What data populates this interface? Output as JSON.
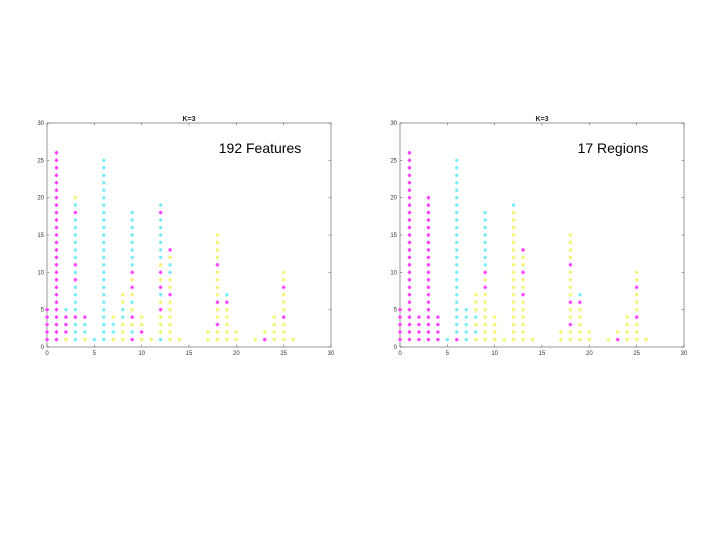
{
  "colors": {
    "magenta": "#ff33ff",
    "cyan": "#6fe9f5",
    "yellow": "#f3f36a",
    "axis": "#555555"
  },
  "chart_data": [
    {
      "type": "scatter",
      "title": "K=3",
      "annotation": "192 Features",
      "xlim": [
        0,
        30
      ],
      "ylim": [
        0,
        30
      ],
      "xticks": [
        "0",
        "5",
        "10",
        "15",
        "20",
        "25",
        "30"
      ],
      "yticks": [
        "0",
        "5",
        "10",
        "15",
        "20",
        "25",
        "30"
      ],
      "marker": "asterisk",
      "grid": false,
      "columns": [
        {
          "x": 0,
          "magenta": [
            1,
            2,
            3,
            4,
            5
          ]
        },
        {
          "x": 1,
          "magenta": [
            1,
            2,
            3,
            4,
            5,
            6,
            7,
            8,
            9,
            10,
            11,
            12,
            13,
            14,
            15,
            16,
            17,
            18,
            19,
            20,
            21,
            22,
            23,
            24,
            25,
            26
          ],
          "cyan": [],
          "yellow": []
        },
        {
          "x": 2,
          "magenta": [
            2,
            3,
            4
          ],
          "cyan": [
            5
          ],
          "yellow": [
            1
          ]
        },
        {
          "x": 3,
          "magenta": [
            4,
            9,
            11,
            18
          ],
          "cyan": [
            1,
            2,
            3,
            5,
            6,
            7,
            8,
            10,
            12,
            13,
            14,
            15,
            16,
            17,
            19
          ],
          "yellow": [
            20
          ]
        },
        {
          "x": 4,
          "magenta": [
            4
          ],
          "cyan": [
            2,
            3
          ],
          "yellow": [
            1
          ]
        },
        {
          "x": 5,
          "cyan": [
            1
          ],
          "yellow": []
        },
        {
          "x": 6,
          "cyan": [
            1,
            2,
            3,
            4,
            5,
            6,
            7,
            8,
            9,
            10,
            11,
            12,
            13,
            14,
            15,
            16,
            17,
            18,
            19,
            20,
            21,
            22,
            23,
            24,
            25
          ],
          "yellow": []
        },
        {
          "x": 7,
          "cyan": [
            2,
            3
          ],
          "yellow": [
            1,
            4
          ]
        },
        {
          "x": 8,
          "cyan": [
            4,
            5
          ],
          "yellow": [
            1,
            2,
            3,
            6,
            7
          ]
        },
        {
          "x": 9,
          "magenta": [
            1,
            4,
            8,
            10
          ],
          "cyan": [
            2,
            6,
            11,
            12,
            13,
            14,
            15,
            16,
            17,
            18
          ],
          "yellow": [
            3,
            5,
            7,
            9
          ]
        },
        {
          "x": 10,
          "magenta": [
            2
          ],
          "yellow": [
            1,
            3,
            4
          ]
        },
        {
          "x": 11,
          "yellow": [
            1
          ]
        },
        {
          "x": 12,
          "magenta": [
            5,
            8,
            10,
            18
          ],
          "cyan": [
            1,
            7,
            12,
            13,
            14,
            15,
            16,
            17,
            19
          ],
          "yellow": [
            2,
            3,
            4,
            6,
            9,
            11
          ]
        },
        {
          "x": 13,
          "magenta": [
            7,
            13
          ],
          "cyan": [
            10,
            11
          ],
          "yellow": [
            1,
            2,
            3,
            4,
            5,
            6,
            8,
            9,
            12
          ]
        },
        {
          "x": 14,
          "yellow": [
            1
          ]
        },
        {
          "x": 17,
          "yellow": [
            1,
            2
          ]
        },
        {
          "x": 18,
          "magenta": [
            3,
            6,
            11
          ],
          "yellow": [
            1,
            2,
            4,
            5,
            7,
            8,
            9,
            10,
            12,
            13,
            14,
            15
          ]
        },
        {
          "x": 19,
          "magenta": [
            6
          ],
          "cyan": [
            7
          ],
          "yellow": [
            1,
            2,
            3,
            4,
            5
          ]
        },
        {
          "x": 20,
          "yellow": [
            1,
            2
          ]
        },
        {
          "x": 22,
          "yellow": [
            1
          ]
        },
        {
          "x": 23,
          "magenta": [
            1
          ],
          "yellow": [
            2
          ]
        },
        {
          "x": 24,
          "yellow": [
            1,
            2,
            3,
            4
          ]
        },
        {
          "x": 25,
          "magenta": [
            4,
            8
          ],
          "yellow": [
            1,
            2,
            3,
            5,
            6,
            7,
            9,
            10
          ]
        },
        {
          "x": 26,
          "yellow": [
            1
          ]
        }
      ]
    },
    {
      "type": "scatter",
      "title": "K=3",
      "annotation": "17 Regions",
      "xlim": [
        0,
        30
      ],
      "ylim": [
        0,
        30
      ],
      "xticks": [
        "0",
        "5",
        "10",
        "15",
        "20",
        "25",
        "30"
      ],
      "yticks": [
        "0",
        "5",
        "10",
        "15",
        "20",
        "25",
        "30"
      ],
      "marker": "asterisk",
      "grid": false,
      "columns": [
        {
          "x": 0,
          "magenta": [
            1,
            2,
            3,
            4,
            5
          ]
        },
        {
          "x": 1,
          "magenta": [
            1,
            2,
            3,
            4,
            5,
            6,
            7,
            8,
            9,
            10,
            11,
            12,
            13,
            14,
            15,
            16,
            17,
            18,
            19,
            20,
            21,
            22,
            23,
            24,
            25,
            26
          ]
        },
        {
          "x": 2,
          "magenta": [
            1,
            2,
            3,
            4
          ]
        },
        {
          "x": 3,
          "magenta": [
            1,
            2,
            3,
            4,
            5,
            6,
            7,
            8,
            9,
            10,
            11,
            12,
            13,
            14,
            15,
            16,
            17,
            18,
            19,
            20
          ]
        },
        {
          "x": 4,
          "magenta": [
            1,
            2,
            3,
            4
          ]
        },
        {
          "x": 5,
          "cyan": [
            1
          ]
        },
        {
          "x": 6,
          "magenta": [
            1
          ],
          "cyan": [
            2,
            3,
            4,
            5,
            6,
            7,
            8,
            9,
            10,
            11,
            12,
            13,
            14,
            15,
            16,
            17,
            18,
            19,
            20,
            21,
            22,
            23,
            24,
            25
          ]
        },
        {
          "x": 7,
          "cyan": [
            1,
            2,
            3,
            4,
            5
          ]
        },
        {
          "x": 8,
          "cyan": [
            2,
            4
          ],
          "yellow": [
            1,
            3,
            5,
            6,
            7
          ]
        },
        {
          "x": 9,
          "magenta": [
            8,
            10
          ],
          "cyan": [
            11,
            12,
            13,
            14,
            15,
            16,
            17,
            18
          ],
          "yellow": [
            1,
            2,
            3,
            4,
            5,
            6,
            7,
            9
          ]
        },
        {
          "x": 10,
          "yellow": [
            1,
            2,
            3,
            4
          ]
        },
        {
          "x": 11,
          "yellow": [
            1
          ]
        },
        {
          "x": 12,
          "cyan": [
            19
          ],
          "yellow": [
            1,
            2,
            3,
            4,
            5,
            6,
            7,
            8,
            9,
            10,
            11,
            12,
            13,
            14,
            15,
            16,
            17,
            18
          ]
        },
        {
          "x": 13,
          "magenta": [
            7,
            10,
            13
          ],
          "yellow": [
            1,
            2,
            3,
            4,
            5,
            6,
            8,
            9,
            11,
            12
          ]
        },
        {
          "x": 14,
          "yellow": [
            1
          ]
        },
        {
          "x": 17,
          "yellow": [
            1,
            2
          ]
        },
        {
          "x": 18,
          "magenta": [
            3,
            6,
            11
          ],
          "yellow": [
            1,
            2,
            4,
            5,
            7,
            8,
            9,
            10,
            12,
            13,
            14,
            15
          ]
        },
        {
          "x": 19,
          "magenta": [
            6
          ],
          "cyan": [
            7
          ],
          "yellow": [
            1,
            2,
            3,
            4,
            5
          ]
        },
        {
          "x": 20,
          "yellow": [
            1,
            2
          ]
        },
        {
          "x": 22,
          "yellow": [
            1
          ]
        },
        {
          "x": 23,
          "magenta": [
            1
          ],
          "yellow": [
            2
          ]
        },
        {
          "x": 24,
          "yellow": [
            1,
            2,
            3,
            4
          ]
        },
        {
          "x": 25,
          "magenta": [
            4,
            8
          ],
          "yellow": [
            1,
            2,
            3,
            5,
            6,
            7,
            9,
            10
          ]
        },
        {
          "x": 26,
          "yellow": [
            1
          ]
        }
      ]
    }
  ]
}
